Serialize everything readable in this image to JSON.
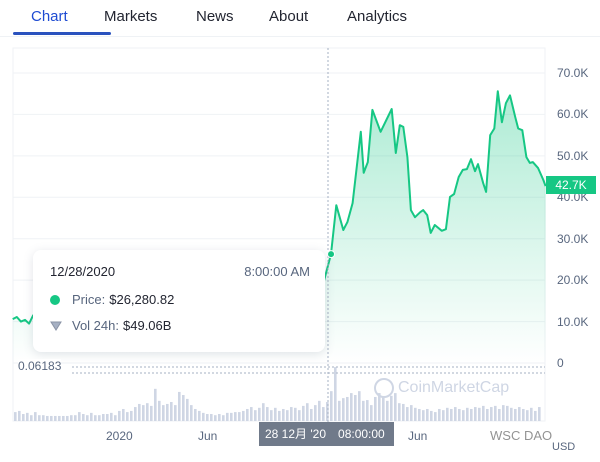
{
  "tabs": [
    {
      "label": "Chart",
      "active": true
    },
    {
      "label": "Markets"
    },
    {
      "label": "News"
    },
    {
      "label": "About"
    },
    {
      "label": "Analytics"
    }
  ],
  "colors": {
    "accent": "#1e4bd2",
    "price_line": "#16c784",
    "volume_bar": "#cfd6e4",
    "crosshair_label_bg": "#707a8a"
  },
  "tooltip": {
    "date": "12/28/2020",
    "time": "8:00:00 AM",
    "price_label": "Price:",
    "price_value": "$26,280.82",
    "volume_label": "Vol 24h:",
    "volume_value": "$49.06B",
    "price_icon": "green-dot-icon",
    "volume_icon": "shield-icon"
  },
  "crosshair": {
    "x_label_date": "28 12月 '20",
    "x_label_time": "08:00:00",
    "y_value": "0.06183"
  },
  "current_price_label": "42.7K",
  "currency": "USD",
  "logo_watermark": "CoinMarketCap",
  "corner_watermark": "WSC DAO",
  "chart_data": {
    "type": "area",
    "y_axis": {
      "position": "right",
      "ticks": [
        "0",
        "10.0K",
        "20.0K",
        "30.0K",
        "40.0K",
        "50.0K",
        "60.0K",
        "70.0K"
      ],
      "range": [
        0,
        70000
      ]
    },
    "x_axis": {
      "ticks": [
        "2020",
        "Jun",
        "Jun"
      ],
      "range": [
        "2019-07-01",
        "2021-12-31"
      ]
    },
    "grid": true,
    "price_series": [
      [
        "2019-07-01",
        10600
      ],
      [
        "2019-07-08",
        11100
      ],
      [
        "2019-07-15",
        10000
      ],
      [
        "2019-07-22",
        10400
      ],
      [
        "2019-07-29",
        9500
      ],
      [
        "2019-08-05",
        11500
      ],
      [
        "2019-09-01",
        10000
      ],
      [
        "2019-10-01",
        8300
      ],
      [
        "2019-11-01",
        9200
      ],
      [
        "2019-12-01",
        7400
      ],
      [
        "2020-01-01",
        7200
      ],
      [
        "2020-02-10",
        10200
      ],
      [
        "2020-03-12",
        5000
      ],
      [
        "2020-04-01",
        6600
      ],
      [
        "2020-05-10",
        8700
      ],
      [
        "2020-06-01",
        9500
      ],
      [
        "2020-07-01",
        9200
      ],
      [
        "2020-08-01",
        11300
      ],
      [
        "2020-09-01",
        11900
      ],
      [
        "2020-10-01",
        10600
      ],
      [
        "2020-11-01",
        13700
      ],
      [
        "2020-11-25",
        19000
      ],
      [
        "2020-12-15",
        19400
      ],
      [
        "2020-12-28",
        26280.82
      ],
      [
        "2021-01-06",
        38100
      ],
      [
        "2021-01-18",
        32100
      ],
      [
        "2021-01-25",
        34000
      ],
      [
        "2021-02-03",
        38600
      ],
      [
        "2021-02-17",
        55800
      ],
      [
        "2021-02-22",
        45900
      ],
      [
        "2021-03-01",
        48500
      ],
      [
        "2021-03-09",
        61100
      ],
      [
        "2021-03-23",
        55800
      ],
      [
        "2021-04-11",
        61300
      ],
      [
        "2021-04-18",
        50700
      ],
      [
        "2021-04-25",
        57400
      ],
      [
        "2021-05-01",
        57000
      ],
      [
        "2021-05-08",
        49700
      ],
      [
        "2021-05-14",
        36900
      ],
      [
        "2021-05-21",
        35200
      ],
      [
        "2021-05-30",
        36400
      ],
      [
        "2021-06-04",
        36900
      ],
      [
        "2021-06-11",
        35700
      ],
      [
        "2021-06-17",
        31400
      ],
      [
        "2021-06-24",
        33300
      ],
      [
        "2021-07-06",
        31900
      ],
      [
        "2021-07-13",
        32300
      ],
      [
        "2021-07-20",
        40100
      ],
      [
        "2021-07-27",
        40800
      ],
      [
        "2021-08-04",
        44900
      ],
      [
        "2021-08-11",
        46600
      ],
      [
        "2021-08-18",
        46800
      ],
      [
        "2021-08-25",
        49200
      ],
      [
        "2021-09-01",
        46300
      ],
      [
        "2021-09-06",
        48000
      ],
      [
        "2021-09-15",
        43400
      ],
      [
        "2021-09-20",
        41300
      ],
      [
        "2021-09-27",
        55000
      ],
      [
        "2021-10-04",
        56600
      ],
      [
        "2021-10-10",
        65600
      ],
      [
        "2021-10-17",
        58100
      ],
      [
        "2021-10-24",
        62700
      ],
      [
        "2021-10-31",
        64600
      ],
      [
        "2021-11-09",
        59300
      ],
      [
        "2021-11-14",
        56600
      ],
      [
        "2021-11-21",
        56200
      ],
      [
        "2021-11-28",
        49700
      ],
      [
        "2021-12-04",
        48300
      ],
      [
        "2021-12-09",
        48500
      ],
      [
        "2021-12-18",
        47100
      ],
      [
        "2021-12-27",
        44200
      ],
      [
        "2021-12-31",
        42700
      ]
    ],
    "volume_billions": [
      23,
      26,
      18,
      21,
      15,
      23,
      15,
      15,
      13,
      13,
      13,
      13,
      13,
      13,
      15,
      15,
      23,
      18,
      15,
      21,
      15,
      15,
      18,
      18,
      21,
      15,
      26,
      31,
      23,
      26,
      36,
      44,
      41,
      46,
      39,
      83,
      52,
      41,
      44,
      49,
      41,
      75,
      67,
      57,
      41,
      31,
      26,
      21,
      18,
      18,
      15,
      18,
      15,
      21,
      21,
      23,
      23,
      26,
      31,
      36,
      28,
      34,
      46,
      36,
      28,
      34,
      26,
      31,
      28,
      36,
      34,
      28,
      39,
      46,
      31,
      41,
      52,
      36,
      49,
      77,
      139,
      52,
      59,
      62,
      72,
      67,
      77,
      52,
      54,
      41,
      62,
      72,
      62,
      52,
      65,
      72,
      46,
      44,
      36,
      41,
      34,
      31,
      28,
      31,
      26,
      23,
      31,
      28,
      34,
      31,
      36,
      31,
      28,
      34,
      31,
      36,
      34,
      39,
      31,
      36,
      39,
      31,
      41,
      39,
      34,
      31,
      36,
      31,
      28,
      34,
      26,
      36
    ],
    "highlighted_point": {
      "date": "2020-12-28",
      "price": 26280.82,
      "volume_billions": 49.06
    }
  }
}
